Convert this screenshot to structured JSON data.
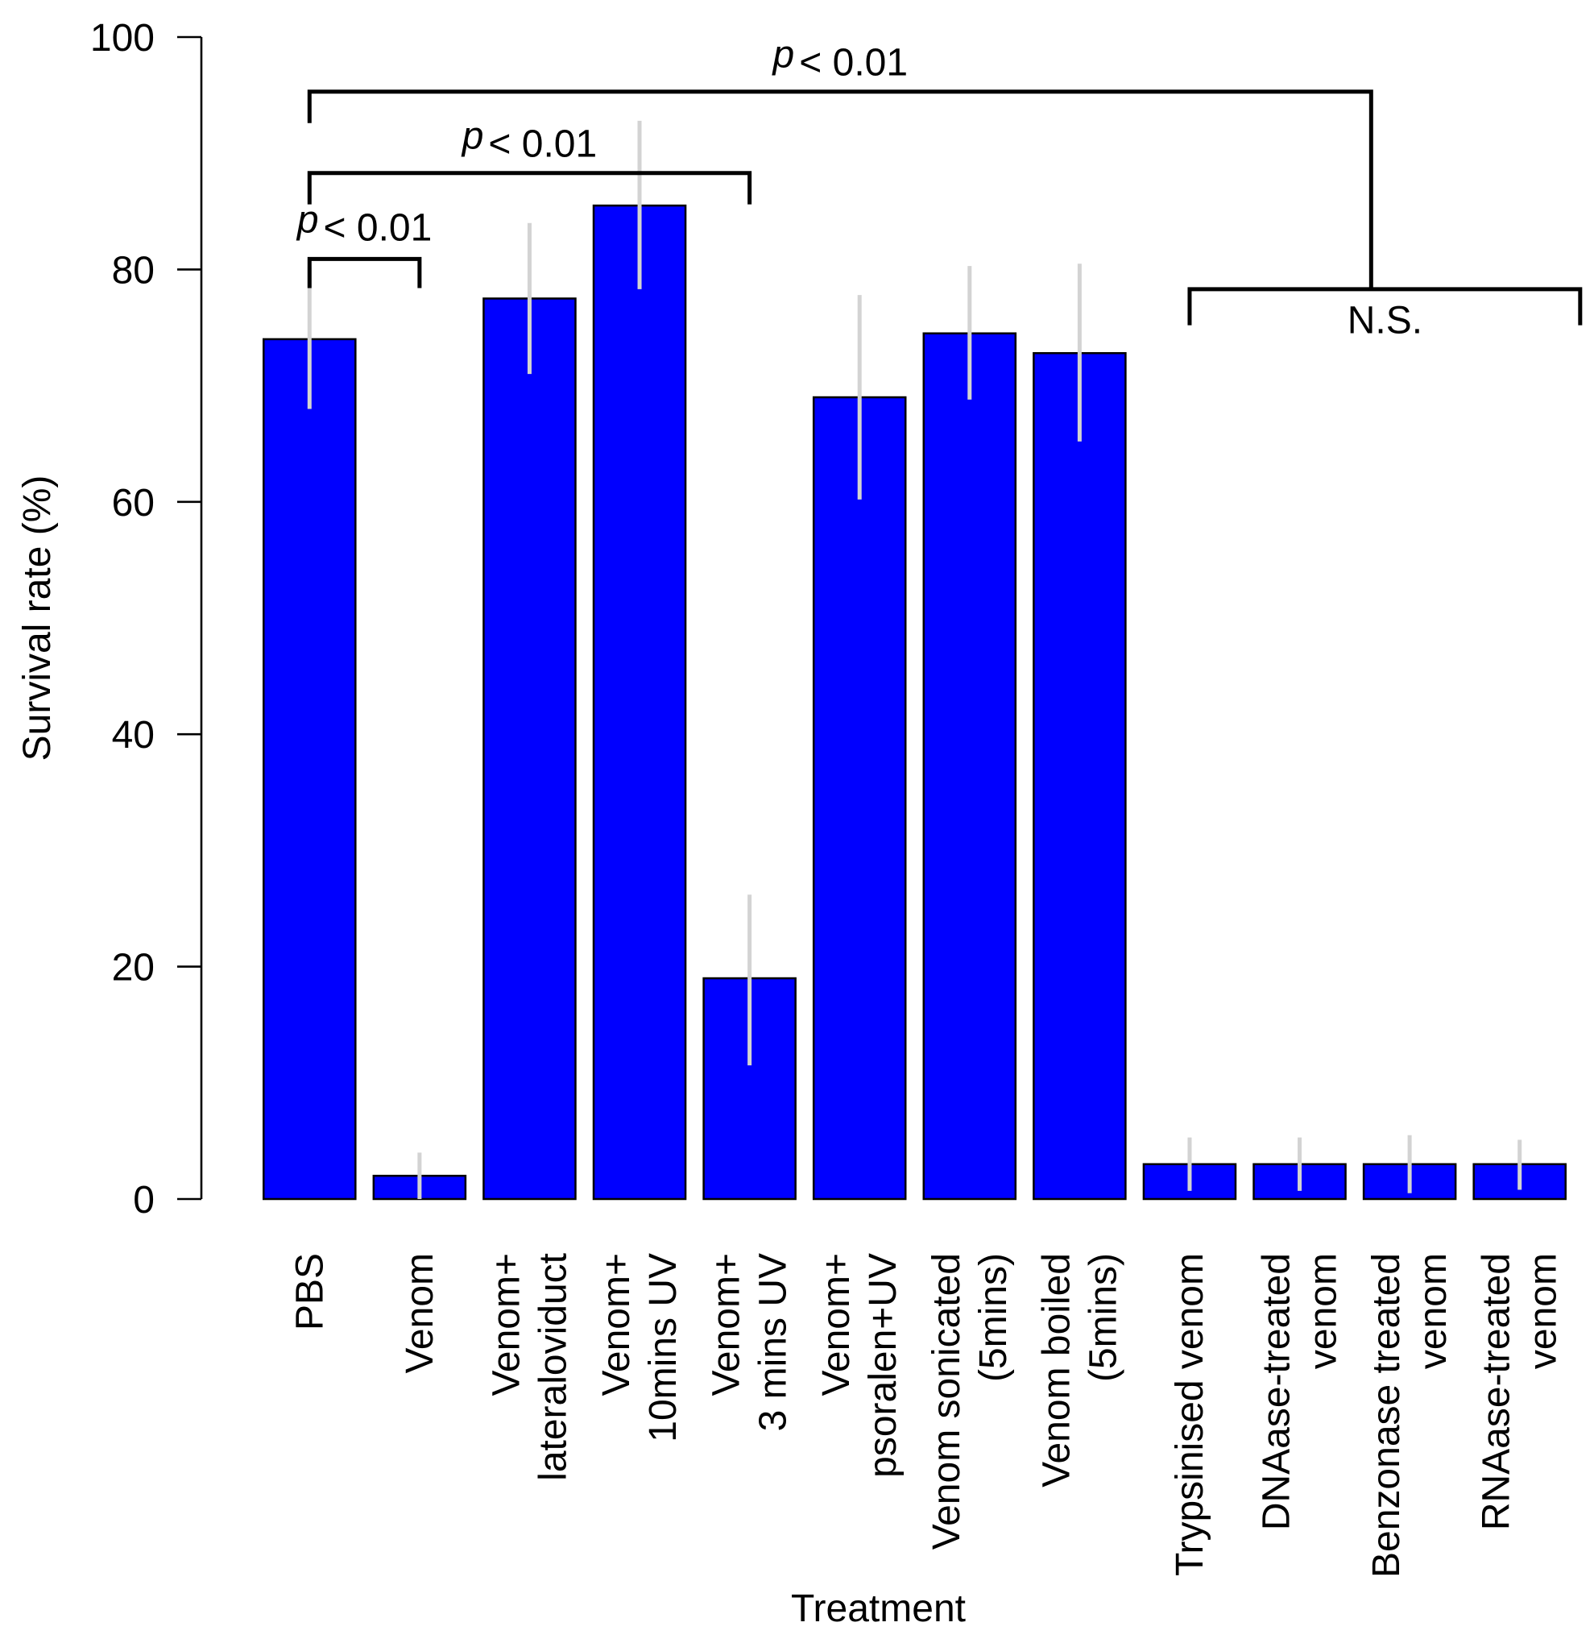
{
  "chart_data": {
    "type": "bar",
    "title": "",
    "xlabel": "Treatment",
    "ylabel": "Survival rate (%)",
    "ylim": [
      0,
      100
    ],
    "yticks": [
      0,
      20,
      40,
      60,
      80,
      100
    ],
    "bar_color": "#0000ff",
    "error_color": "#d3d3d3",
    "categories": [
      [
        "PBS"
      ],
      [
        "Venom"
      ],
      [
        "Venom+",
        "lateraloviduct"
      ],
      [
        "Venom+",
        "10mins UV"
      ],
      [
        "Venom+",
        "3 mins UV"
      ],
      [
        "Venom+",
        "psoralen+UV"
      ],
      [
        "Venom sonicated",
        "(5mins)"
      ],
      [
        "Venom boiled",
        "(5mins)"
      ],
      [
        "Trypsinised venom"
      ],
      [
        "DNAase-treated",
        "venom"
      ],
      [
        "Benzonase treated",
        "venom"
      ],
      [
        "RNAase-treated",
        "venom"
      ]
    ],
    "values": [
      74,
      2,
      77.5,
      85.5,
      19,
      69,
      74.5,
      72.8,
      3,
      3,
      3,
      3
    ],
    "error_low": [
      68,
      0,
      71,
      78.3,
      11.5,
      60.2,
      68.8,
      65.2,
      0.7,
      0.7,
      0.5,
      0.8
    ],
    "error_high": [
      80.2,
      4,
      84,
      92.8,
      26.2,
      77.8,
      80.3,
      80.5,
      5.3,
      5.3,
      5.5,
      5.1
    ],
    "annotations": [
      {
        "type": "bracket",
        "from": 0,
        "to": 1,
        "level": 80.9,
        "left_drop": 78.4,
        "right_drop": 78.4,
        "p_prefix": "p",
        "text": "< 0.01",
        "text_level": 82.5
      },
      {
        "type": "bracket",
        "from": 0,
        "to": 4,
        "level": 88.3,
        "left_drop": 85.6,
        "right_drop": 85.6,
        "p_prefix": "p",
        "text": "< 0.01",
        "text_level": 89.7
      },
      {
        "type": "bracket",
        "from": 0,
        "to": 9.65,
        "level": 95.3,
        "left_drop": 92.6,
        "right_drop": 78.3,
        "p_prefix": "p",
        "text": "< 0.01",
        "text_level": 96.7
      },
      {
        "type": "bracket",
        "from": 8,
        "to": 11.55,
        "level": 78.3,
        "left_drop": 75.2,
        "right_drop": 75.2,
        "p_prefix": "",
        "text": "N.S.",
        "text_level": 74.5
      }
    ]
  }
}
